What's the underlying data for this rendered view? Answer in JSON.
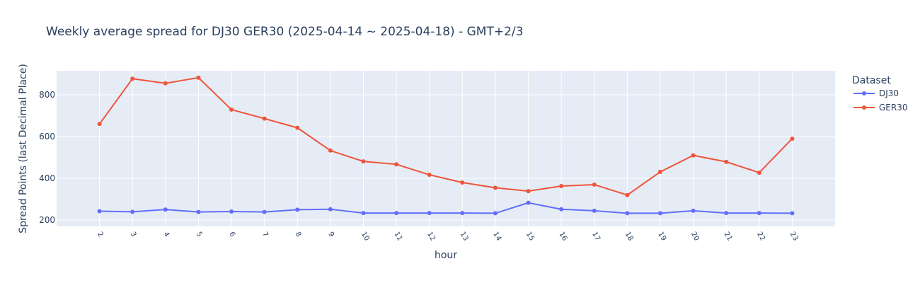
{
  "chart_data": {
    "type": "line",
    "title": "Weekly average spread for  DJ30 GER30 (2025-04-14 ~ 2025-04-18) - GMT+2/3",
    "xlabel": "hour",
    "ylabel": "Spread Points (last Decimal Place)",
    "x": [
      2,
      3,
      4,
      5,
      6,
      7,
      8,
      9,
      10,
      11,
      12,
      13,
      14,
      15,
      16,
      17,
      18,
      19,
      20,
      21,
      22,
      23
    ],
    "x_tick_labels": [
      "2",
      "3",
      "4",
      "5",
      "6",
      "7",
      "8",
      "9",
      "10",
      "11",
      "12",
      "13",
      "14",
      "15",
      "16",
      "17",
      "18",
      "19",
      "20",
      "21",
      "22",
      "23"
    ],
    "ylim": [
      170,
      915
    ],
    "y_ticks": [
      200,
      400,
      600,
      800
    ],
    "y_tick_labels": [
      "200",
      "400",
      "600",
      "800"
    ],
    "grid": true,
    "legend_title": "Dataset",
    "legend_position": "right",
    "series": [
      {
        "name": "DJ30",
        "color": "#636efa",
        "values": [
          243,
          240,
          251,
          239,
          241,
          239,
          250,
          252,
          234,
          234,
          234,
          234,
          233,
          283,
          252,
          245,
          233,
          233,
          245,
          234,
          234,
          233
        ]
      },
      {
        "name": "GER30",
        "color": "#ef553b",
        "values": [
          660,
          877,
          855,
          882,
          729,
          686,
          642,
          533,
          481,
          467,
          417,
          380,
          355,
          339,
          363,
          370,
          320,
          431,
          510,
          479,
          427,
          590
        ]
      }
    ],
    "plot_background": "#e5ecf6",
    "grid_color": "#ffffff"
  }
}
